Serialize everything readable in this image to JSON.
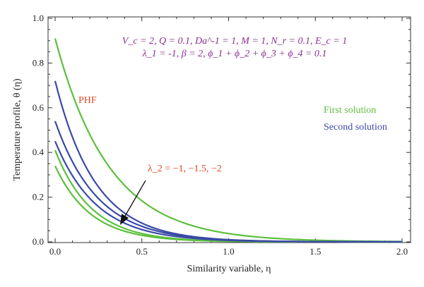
{
  "chart_data": {
    "type": "line",
    "title": "",
    "xlabel": "Similarity variable, η",
    "ylabel": "Temperature profile, θ (η)",
    "xlim": [
      0,
      2
    ],
    "ylim": [
      0,
      1
    ],
    "x_ticks": [
      "0.0",
      "0.5",
      "1.0",
      "1.5",
      "2.0"
    ],
    "y_ticks": [
      "0.0",
      "0.2",
      "0.4",
      "0.6",
      "0.8",
      "1.0"
    ],
    "parameters_line1": "V_c = 2, Q = 0.1, Da^-1 = 1, M = 1, N_r = 0.1, E_c = 1",
    "parameters_line2": "λ_1 = -1, β = 2, ϕ_1 + ϕ_2 + ϕ_3 + ϕ_4 = 0.1",
    "annotations": {
      "phf": "PHF",
      "lambda2": "λ_2 = −1, −1.5, −2"
    },
    "legend": [
      {
        "name": "First solution",
        "color": "#5cbf3c"
      },
      {
        "name": "Second solution",
        "color": "#3a49a8"
      }
    ],
    "series": [
      {
        "group": "First solution",
        "color": "#5cbf3c",
        "theta0": 0.91,
        "decay": 3.2
      },
      {
        "group": "First solution",
        "color": "#5cbf3c",
        "theta0": 0.41,
        "decay": 4.8
      },
      {
        "group": "First solution",
        "color": "#5cbf3c",
        "theta0": 0.34,
        "decay": 4.9
      },
      {
        "group": "Second solution",
        "color": "#3a49a8",
        "theta0": 0.72,
        "decay": 4.3
      },
      {
        "group": "Second solution",
        "color": "#3a49a8",
        "theta0": 0.54,
        "decay": 4.1
      },
      {
        "group": "Second solution",
        "color": "#3a49a8",
        "theta0": 0.45,
        "decay": 4.2
      }
    ],
    "colors": {
      "params": "#8b2f8f",
      "annotation": "#e04a2a"
    }
  }
}
